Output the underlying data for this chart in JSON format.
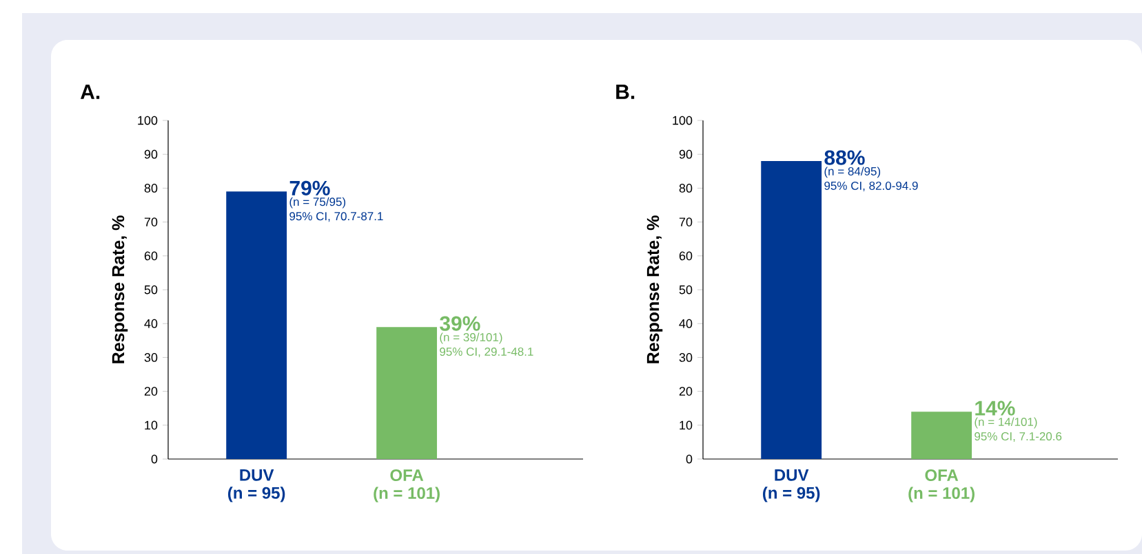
{
  "chart_data": [
    {
      "type": "bar",
      "title": "A.",
      "ylabel": "Response Rate, %",
      "categories": [
        "DUV (n = 95)",
        "OFA (n = 101)"
      ],
      "values": [
        79,
        39
      ],
      "colors": [
        "#003893",
        "#77bb65"
      ],
      "ylim": [
        0,
        100
      ],
      "yticks": [
        0,
        10,
        20,
        30,
        40,
        50,
        60,
        70,
        80,
        90,
        100
      ],
      "annotations": [
        {
          "text": "79%",
          "x": "DUV (n = 95)",
          "y": 79
        },
        {
          "text": "(n = 75/95) 95% CI, 70.7-87.1",
          "x": "DUV (n = 95)",
          "y": 79
        },
        {
          "text": "39%",
          "x": "OFA (n = 101)",
          "y": 39
        },
        {
          "text": "(n = 39/101) 95% CI, 29.1-48.1",
          "x": "OFA (n = 101)",
          "y": 39
        }
      ]
    },
    {
      "type": "bar",
      "title": "B.",
      "ylabel": "Response Rate, %",
      "categories": [
        "DUV (n = 95)",
        "OFA (n = 101)"
      ],
      "values": [
        88,
        14
      ],
      "colors": [
        "#003893",
        "#77bb65"
      ],
      "ylim": [
        0,
        100
      ],
      "yticks": [
        0,
        10,
        20,
        30,
        40,
        50,
        60,
        70,
        80,
        90,
        100
      ],
      "annotations": [
        {
          "text": "88%",
          "x": "DUV (n = 95)",
          "y": 88
        },
        {
          "text": "(n = 84/95) 95% CI, 82.0-94.9",
          "x": "DUV (n = 95)",
          "y": 88
        },
        {
          "text": "14%",
          "x": "OFA (n = 101)",
          "y": 14
        },
        {
          "text": "(n = 14/101) 95% CI, 7.1-20.6",
          "x": "OFA (n = 101)",
          "y": 14
        }
      ]
    }
  ]
}
